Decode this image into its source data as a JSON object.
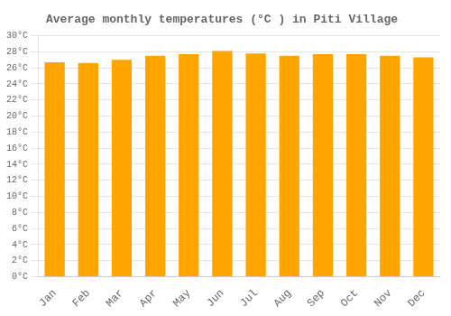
{
  "chart_data": {
    "type": "bar",
    "title": "Average monthly temperatures (°C ) in Piti Village",
    "categories": [
      "Jan",
      "Feb",
      "Mar",
      "Apr",
      "May",
      "Jun",
      "Jul",
      "Aug",
      "Sep",
      "Oct",
      "Nov",
      "Dec"
    ],
    "values": [
      26.7,
      26.6,
      27.0,
      27.5,
      27.7,
      28.1,
      27.8,
      27.5,
      27.7,
      27.7,
      27.5,
      27.3
    ],
    "color": "#FFA500",
    "ylim": [
      0,
      30
    ],
    "yticks": [
      {
        "value": 0,
        "label": "0°C"
      },
      {
        "value": 2,
        "label": "2°C"
      },
      {
        "value": 4,
        "label": "4°C"
      },
      {
        "value": 6,
        "label": "6°C"
      },
      {
        "value": 8,
        "label": "8°C"
      },
      {
        "value": 10,
        "label": "10°C"
      },
      {
        "value": 12,
        "label": "12°C"
      },
      {
        "value": 14,
        "label": "14°C"
      },
      {
        "value": 16,
        "label": "16°C"
      },
      {
        "value": 18,
        "label": "18°C"
      },
      {
        "value": 20,
        "label": "20°C"
      },
      {
        "value": 22,
        "label": "22°C"
      },
      {
        "value": 24,
        "label": "24°C"
      },
      {
        "value": 26,
        "label": "26°C"
      },
      {
        "value": 28,
        "label": "28°C"
      },
      {
        "value": 30,
        "label": "30°C"
      }
    ],
    "grid": true
  }
}
